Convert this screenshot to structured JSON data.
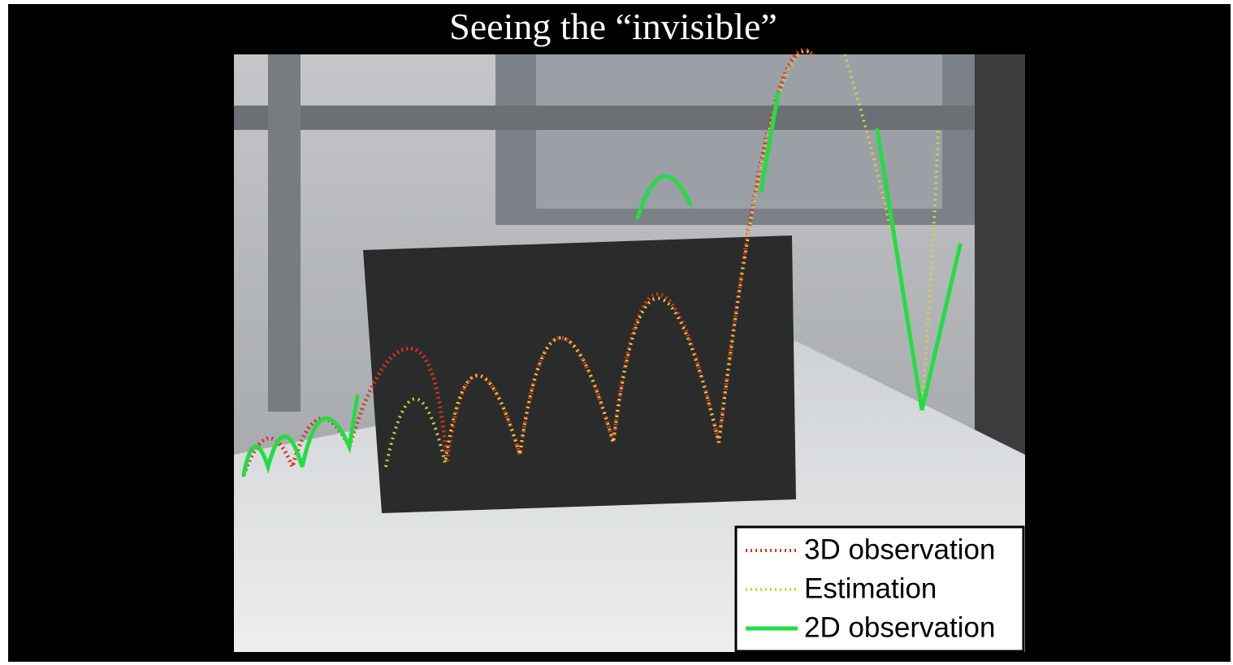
{
  "title": "Seeing the “invisible”",
  "legend": {
    "items": [
      {
        "label": "3D observation"
      },
      {
        "label": "Estimation"
      },
      {
        "label": "2D observation"
      }
    ]
  }
}
